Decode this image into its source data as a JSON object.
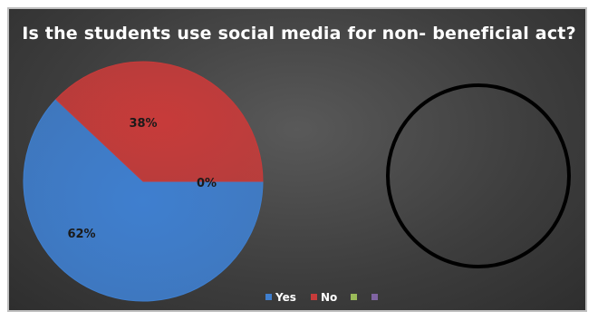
{
  "chart_data": {
    "type": "pie",
    "title": "Is the students use social media for non- beneficial act?",
    "categories": [
      "Yes",
      "No",
      "",
      ""
    ],
    "values": [
      62,
      38,
      0,
      0
    ],
    "data_labels": [
      "62%",
      "38%",
      "0%",
      ""
    ],
    "colors": [
      "#3f7fcf",
      "#c73b3a",
      "#9bbb59",
      "#8064a2"
    ],
    "legend_position": "bottom",
    "second_chart": {
      "type": "pie",
      "values": []
    }
  }
}
